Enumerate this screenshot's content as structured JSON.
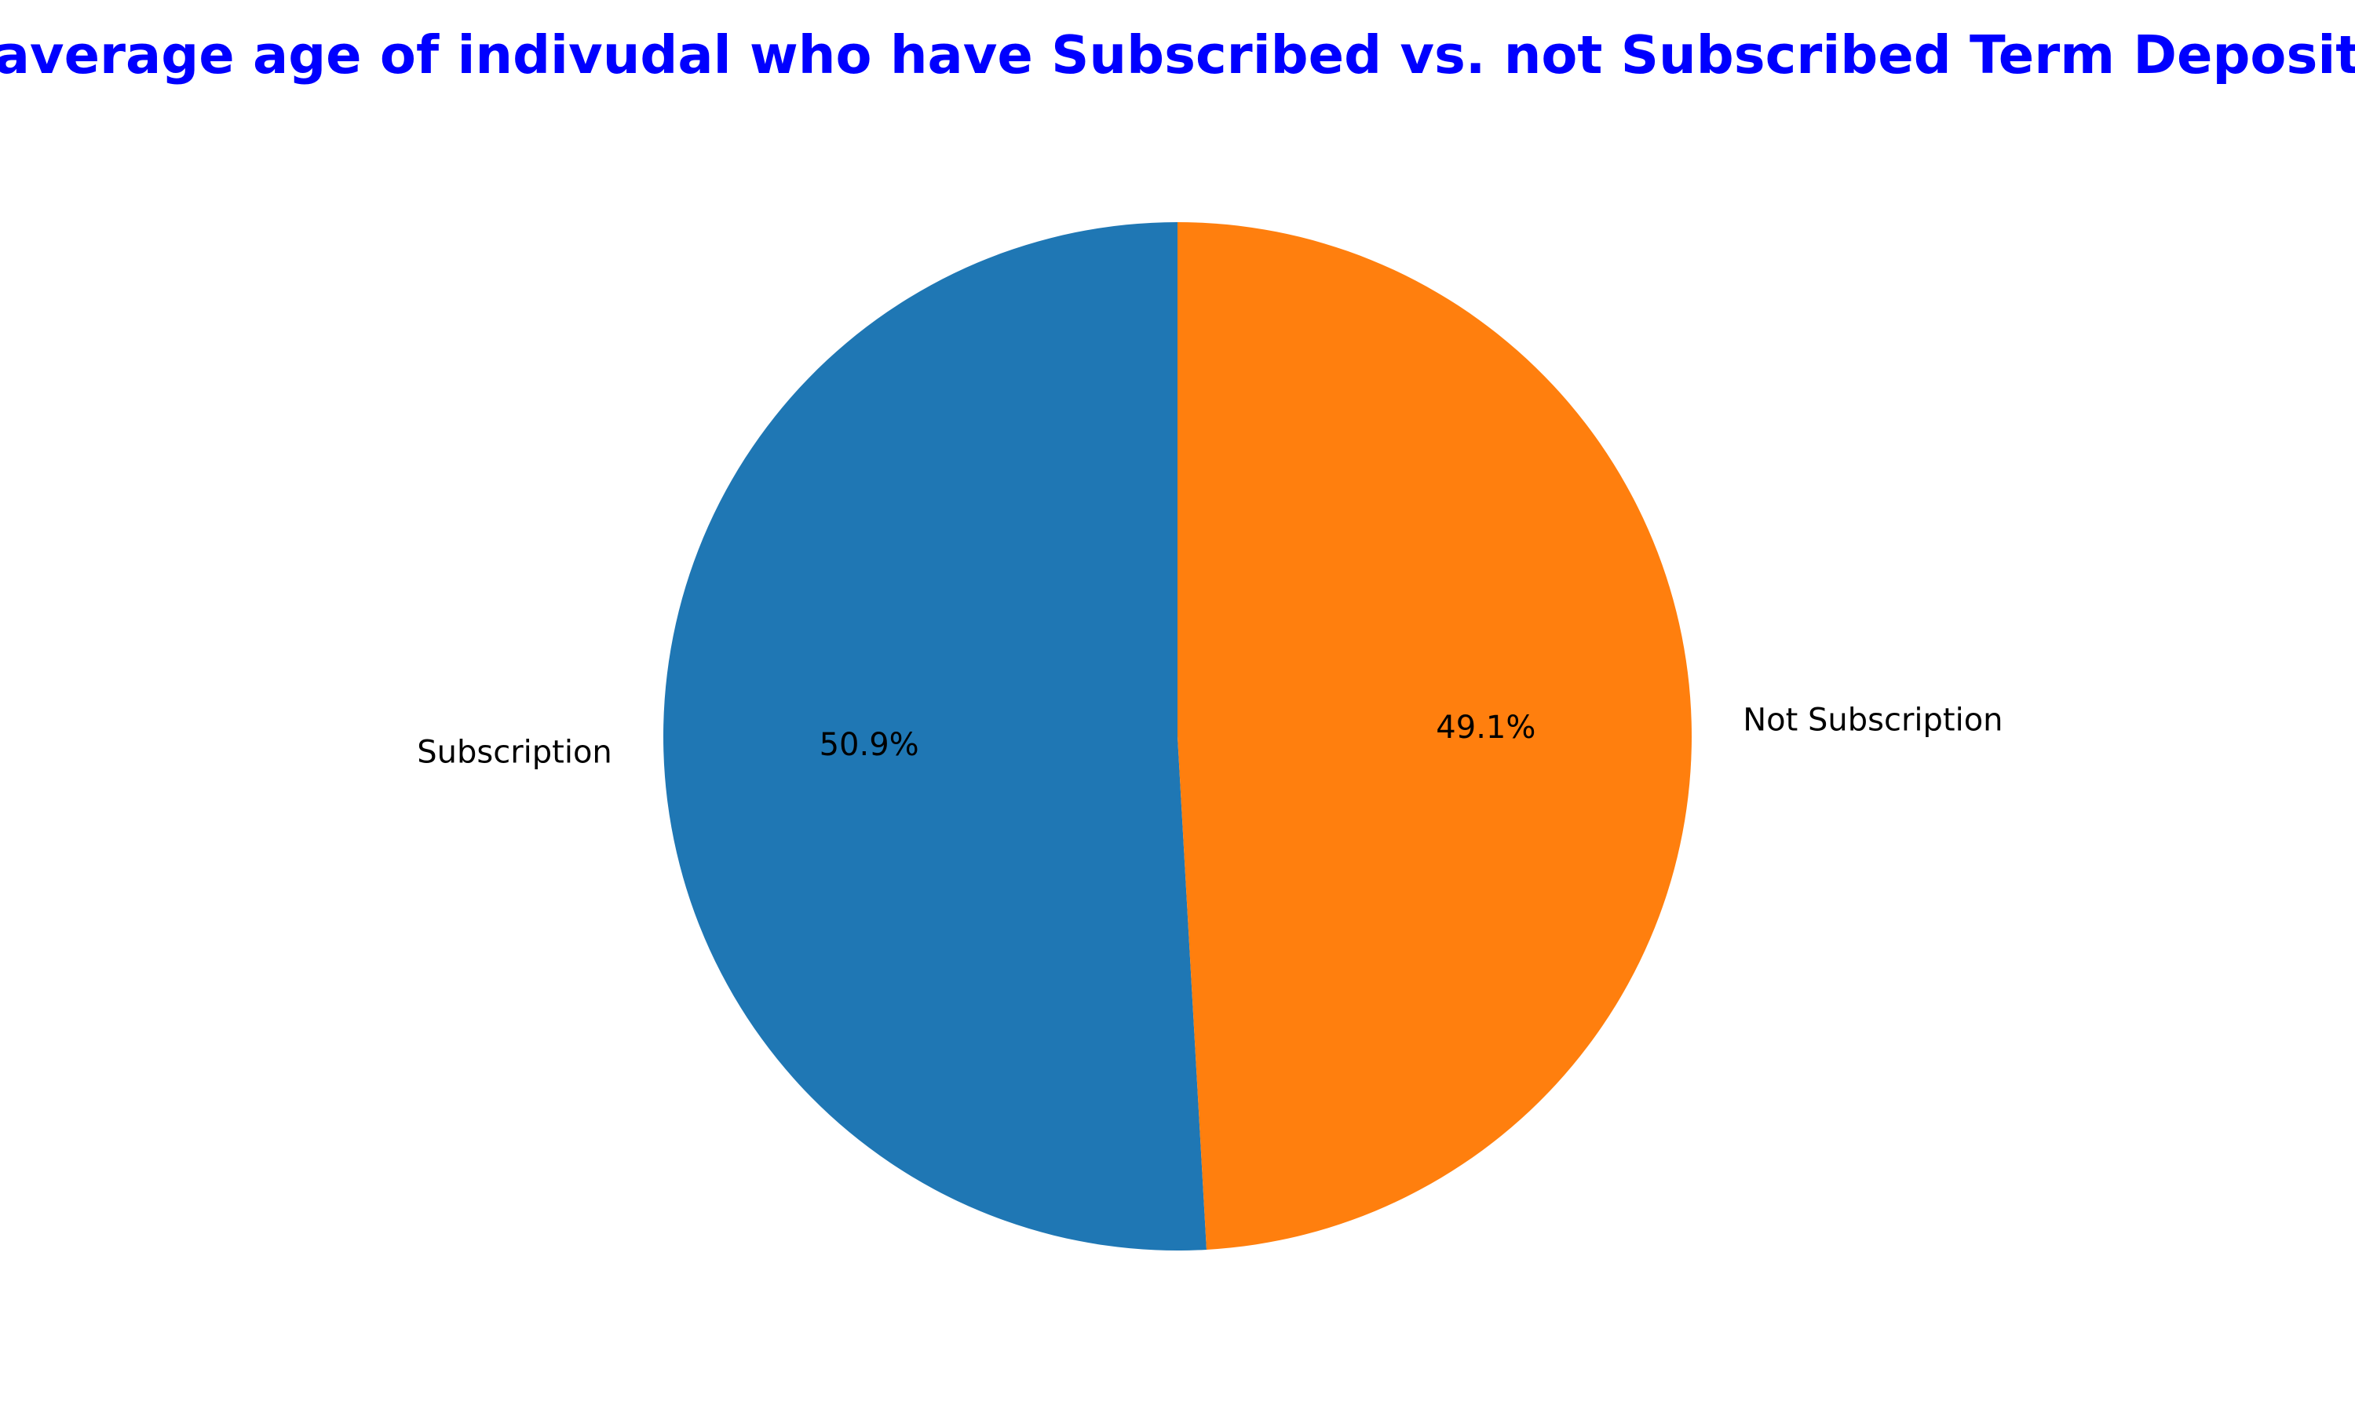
{
  "chart_data": {
    "type": "pie",
    "title": "average age of indivudal who have Subscribed vs. not Subscribed Term Deposit",
    "title_color": "#0000ff",
    "start_angle_deg": 90,
    "direction": "counterclockwise",
    "slices": [
      {
        "label": "Subscription",
        "value": 50.9,
        "pct_label": "50.9%",
        "color": "#1f77b4"
      },
      {
        "label": "Not Subscription",
        "value": 49.1,
        "pct_label": "49.1%",
        "color": "#ff7f0e"
      }
    ],
    "legend": "none"
  }
}
